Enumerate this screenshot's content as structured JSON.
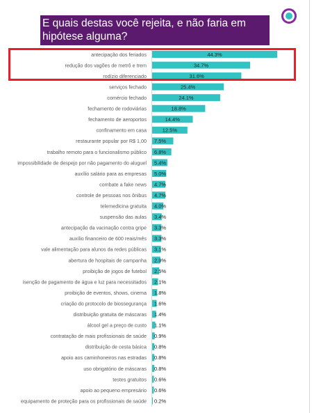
{
  "title": "E quais destas você rejeita, e não faria em hipótese alguma?",
  "colors": {
    "bar": "#33c2c2",
    "label": "#595959",
    "value": "#222222",
    "title_bg": "#5b1a6e",
    "highlight": "#ee1c24"
  },
  "icons": {
    "logo": "logo-circle-icon"
  },
  "chart_data": {
    "type": "bar",
    "orientation": "horizontal",
    "title": "E quais destas você rejeita, e não faria em hipótese alguma?",
    "categories": [
      "antecipação dos feriados",
      "redução dos vagões de metrô e trem",
      "rodízio diferenciado",
      "serviços fechado",
      "comércio fechado",
      "fechamento de rodoviárias",
      "fechamento de aeroportos",
      "confinamento em casa",
      "restaurante popular por R$ 1,00",
      "trabalho remoto para o funcionalismo público",
      "impossibilidade de despejo por não pagamento do aluguel",
      "auxílio salário para as empresas",
      "combate a fake news",
      "controle de pessoas nos ônibus",
      "telemedicina gratuita",
      "suspensão das aulas",
      "antecipação da vacinação contra gripe",
      "auxílio financeiro de 600 reais/mês",
      "vale alimentação para alunos da redes públicas",
      "abertura de hospitais de campanha",
      "proibição de jogos de futebol",
      "isenção de pagamento de água e luz para necessitados",
      "proibição de eventos, shows, cinema",
      "criação do protocolo de biossegurança",
      "distribuição gratuita de máscaras",
      "álcool gel a preço de custo",
      "contratação de mais profissionais de saúde",
      "distribuição de cesta básica",
      "apoio aos caminhoneiros nas estradas",
      "uso obrigatório de máscaras",
      "testes gratuitos",
      "apoio ao pequeno empresário",
      "equipamento de proteção para os profissionais de saúde"
    ],
    "values": [
      44.3,
      34.7,
      31.6,
      25.4,
      24.1,
      18.8,
      14.4,
      12.5,
      7.5,
      6.8,
      5.4,
      5.0,
      4.7,
      4.7,
      4.0,
      3.4,
      3.3,
      3.3,
      3.1,
      2.9,
      2.5,
      2.1,
      1.8,
      1.6,
      1.4,
      1.1,
      0.9,
      0.8,
      0.8,
      0.8,
      0.6,
      0.6,
      0.2
    ],
    "value_labels": [
      "44.3%",
      "34.7%",
      "31.6%",
      "25.4%",
      "24.1%",
      "18.8%",
      "14.4%",
      "12.5%",
      "7.5%",
      "6.8%",
      "5.4%",
      "5.0%",
      "4.7%",
      "4.7%",
      "4.0%",
      "3.4%",
      "3.3%",
      "3.3%",
      "3.1%",
      "2.9%",
      "2.5%",
      "2.1%",
      "1.8%",
      "1.6%",
      "1.4%",
      "1.1%",
      "0.9%",
      "0.8%",
      "0.8%",
      "0.8%",
      "0.6%",
      "0.6%",
      "0.2%"
    ],
    "highlighted_categories": [
      "antecipação dos feriados",
      "redução dos vagões de metrô e trem",
      "rodízio diferenciado"
    ],
    "xlim": [
      0,
      44.3
    ],
    "grid": false,
    "legend": "none"
  }
}
